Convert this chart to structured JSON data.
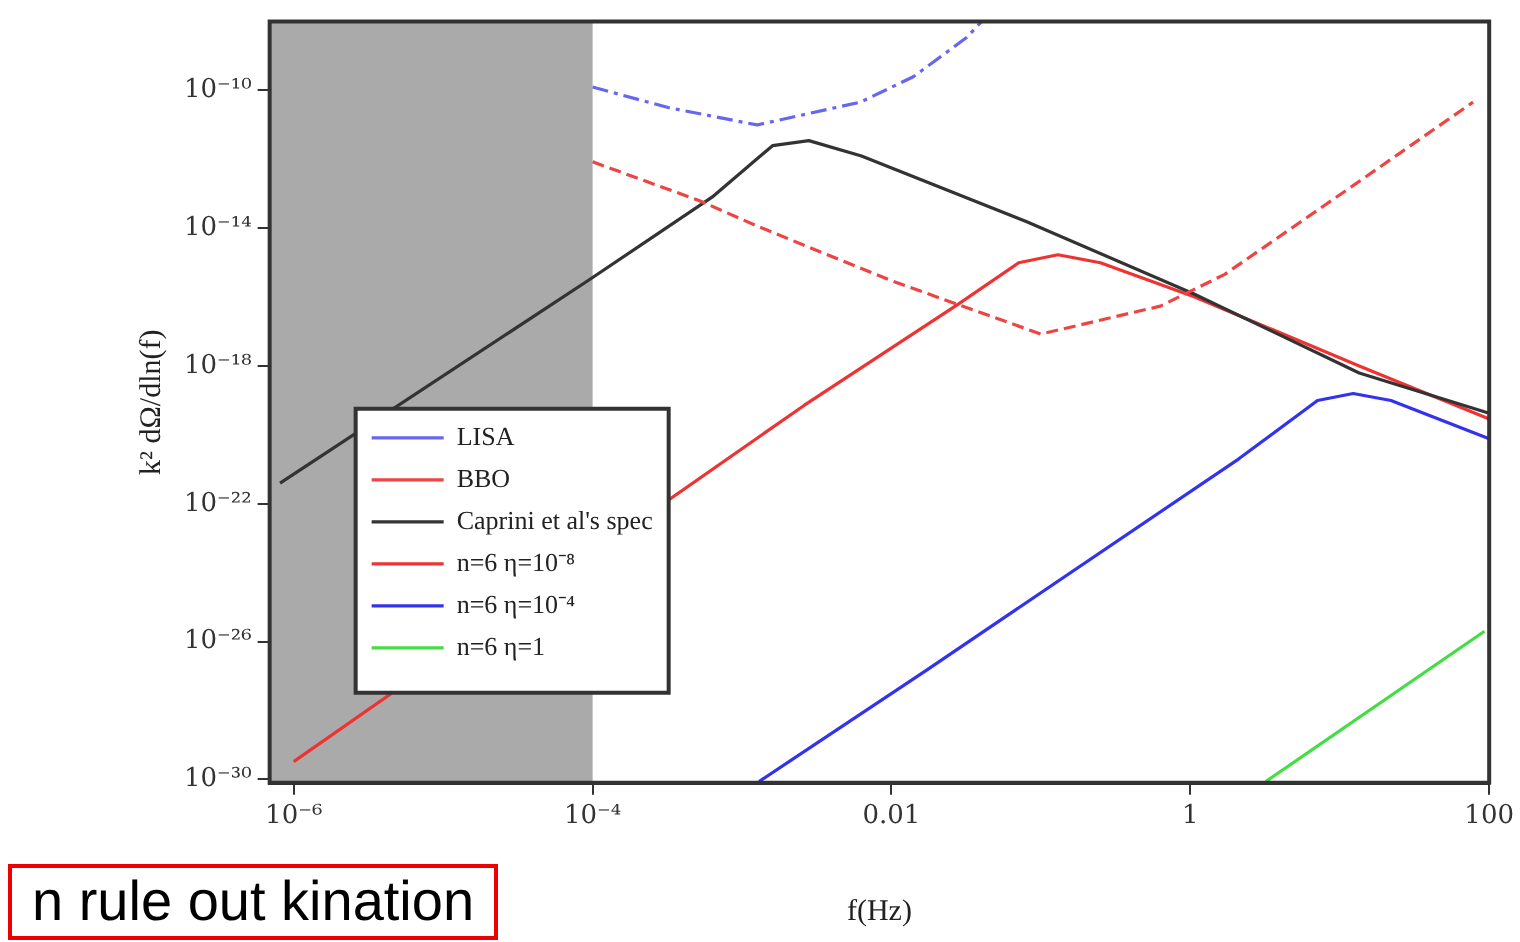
{
  "chart_data": {
    "type": "line",
    "xlabel": "f(Hz)",
    "ylabel": "k² dΩ/dln(f)",
    "log": "xy",
    "grid": false,
    "legend": "bottom left",
    "marker": "none",
    "xlim": [
      6.9e-07,
      100
    ],
    "ylim": [
      8e-31,
      1e-08
    ],
    "xticks": [
      {
        "value": 1e-06,
        "label": "10⁻⁶"
      },
      {
        "value": 0.0001,
        "label": "10⁻⁴"
      },
      0.01,
      1,
      100
    ],
    "yticks": [
      {
        "value": 1e-30,
        "label": "10⁻³⁰"
      },
      {
        "value": 1e-26,
        "label": "10⁻²⁶"
      },
      {
        "value": 1e-22,
        "label": "10⁻²²"
      },
      {
        "value": 1e-18,
        "label": "10⁻¹⁸"
      },
      {
        "value": 1e-14,
        "label": "10⁻¹⁴"
      },
      {
        "value": 1e-10,
        "label": "10⁻¹⁰"
      }
    ],
    "bands": [
      {
        "axis": "x",
        "from": 6.9e-07,
        "to": 0.0001,
        "color": "#aaaaaa"
      }
    ],
    "series": [
      {
        "name": "LISA",
        "color": "#6666ee",
        "line_style": "dashdot",
        "x": [
          0.0001,
          0.00032,
          0.00126,
          0.0062,
          0.014,
          0.032,
          0.04
        ],
        "values": [
          1.26e-10,
          3.2e-11,
          1e-11,
          4.6e-11,
          2.5e-10,
          3.5e-09,
          1e-08
        ]
      },
      {
        "name": "BBO",
        "color": "#ee4444",
        "line_style": "dashed",
        "x": [
          0.0001,
          0.00052,
          0.0013,
          0.01,
          0.1,
          0.63,
          1.7,
          13.5,
          78
        ],
        "values": [
          8.5e-13,
          6.3e-14,
          1.1e-14,
          3e-16,
          8.5e-18,
          5.5e-17,
          4.6e-16,
          2.3e-13,
          4.6e-11
        ]
      },
      {
        "name": "Caprini et al's spec",
        "color": "#333333",
        "line_style": "solid",
        "x": [
          8.1e-07,
          9.5e-05,
          0.00063,
          0.0016,
          0.0028,
          0.0063,
          0.079,
          1.05,
          13.5,
          100
        ],
        "values": [
          4e-22,
          3.2e-16,
          8e-14,
          2.5e-12,
          3.5e-12,
          1.26e-12,
          1.6e-14,
          1.26e-16,
          6.3e-19,
          4.3e-20
        ]
      },
      {
        "name": "n=6 η=10⁻⁸",
        "color": "#ee3333",
        "line_style": "solid",
        "x": [
          1e-06,
          0.0026,
          0.028,
          0.071,
          0.13,
          0.25,
          1.05,
          13.5,
          100
        ],
        "values": [
          3.3e-30,
          7.2e-20,
          6.3e-17,
          1e-15,
          1.7e-15,
          1e-15,
          1.05e-16,
          1e-18,
          2.9e-20
        ]
      },
      {
        "name": "n=6 η=10⁻⁴",
        "color": "#3333ee",
        "line_style": "solid",
        "x": [
          0.0013,
          0.017,
          2.1,
          7.1,
          12.3,
          22,
          100
        ],
        "values": [
          8.7e-31,
          1.45e-27,
          2e-21,
          1e-19,
          1.6e-19,
          1e-19,
          7.8e-21
        ]
      },
      {
        "name": "n=6 η=1",
        "color": "#44dd44",
        "line_style": "solid",
        "x": [
          3.2,
          93
        ],
        "values": [
          8.7e-31,
          2e-26
        ]
      }
    ],
    "annotations": [
      "n rule out kination"
    ]
  }
}
